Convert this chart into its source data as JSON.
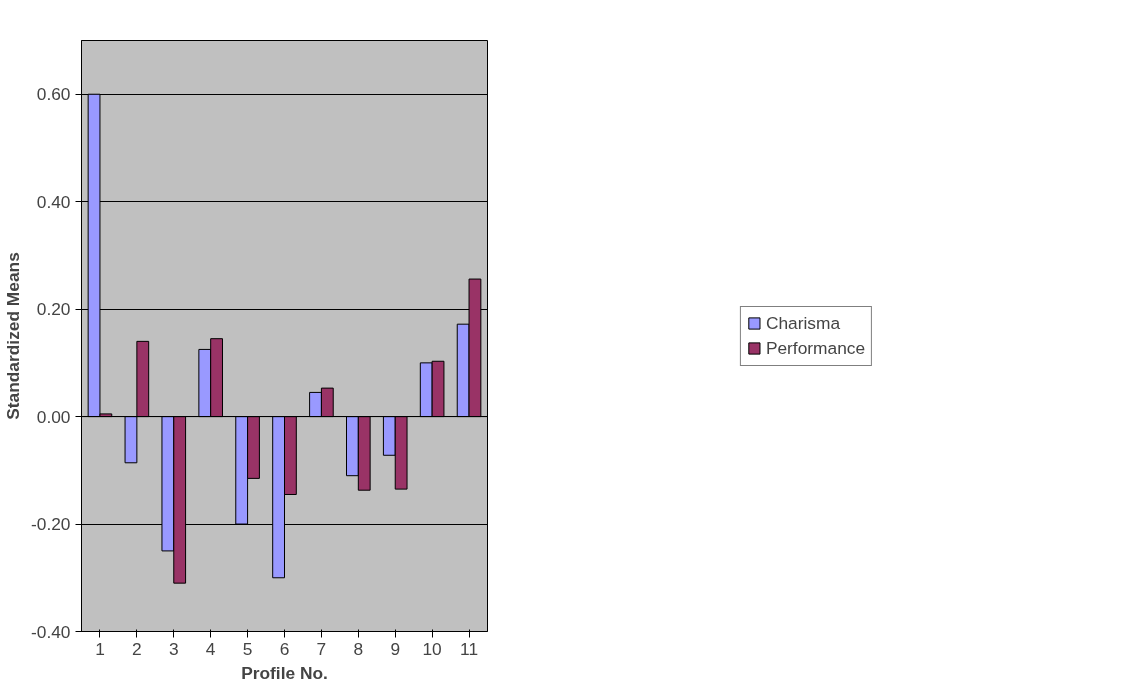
{
  "chart_data": {
    "type": "bar",
    "xlabel": "Profile No.",
    "ylabel": "Standardized Means",
    "categories": [
      "1",
      "2",
      "3",
      "4",
      "5",
      "6",
      "7",
      "8",
      "9",
      "10",
      "11"
    ],
    "series": [
      {
        "name": "Charisma",
        "color": "#9999ff",
        "values": [
          0.6,
          -0.086,
          -0.25,
          0.125,
          -0.2,
          -0.3,
          0.045,
          -0.11,
          -0.072,
          0.1,
          0.172
        ]
      },
      {
        "name": "Performance",
        "color": "#993366",
        "values": [
          0.005,
          0.14,
          -0.31,
          0.145,
          -0.115,
          -0.145,
          0.053,
          -0.137,
          -0.135,
          0.103,
          0.256
        ]
      }
    ],
    "ylim": [
      -0.4,
      0.7
    ],
    "yticks": [
      {
        "value": -0.4,
        "label": "-0.40"
      },
      {
        "value": -0.2,
        "label": "-0.20"
      },
      {
        "value": 0,
        "label": "0.00"
      },
      {
        "value": 0.2,
        "label": "0.20"
      },
      {
        "value": 0.4,
        "label": "0.40"
      },
      {
        "value": 0.6,
        "label": "0.60"
      }
    ],
    "grid": "y",
    "legend": "right"
  }
}
